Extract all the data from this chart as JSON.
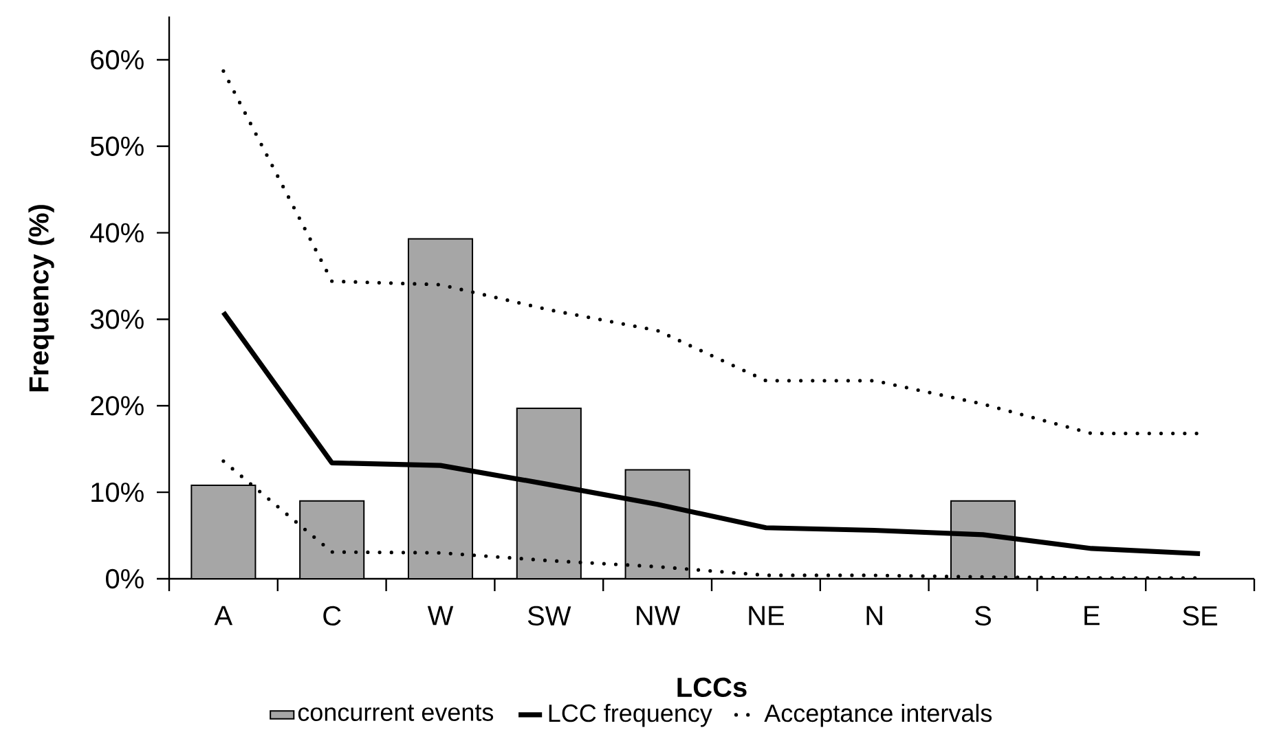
{
  "chart_data": {
    "type": "bar",
    "xlabel": "LCCs",
    "ylabel": "Frequency (%)",
    "categories": [
      "A",
      "C",
      "W",
      "SW",
      "NW",
      "NE",
      "N",
      "S",
      "E",
      "SE"
    ],
    "ylim": [
      0,
      65
    ],
    "yticks": [
      {
        "value": 0,
        "label": "0%"
      },
      {
        "value": 10,
        "label": "10%"
      },
      {
        "value": 20,
        "label": "20%"
      },
      {
        "value": 30,
        "label": "30%"
      },
      {
        "value": 40,
        "label": "40%"
      },
      {
        "value": 50,
        "label": "50%"
      },
      {
        "value": 60,
        "label": "60%"
      }
    ],
    "grid": false,
    "legend": "bottom",
    "series": [
      {
        "name": "concurrent events",
        "type": "bar",
        "color": "#a6a6a6",
        "values": [
          10.8,
          9.0,
          39.3,
          19.7,
          12.6,
          0,
          0,
          9.0,
          0,
          0
        ]
      },
      {
        "name": "LCC frequency",
        "type": "line",
        "color": "#000000",
        "line_style": "solid",
        "values": [
          30.8,
          13.4,
          13.1,
          10.9,
          8.6,
          5.9,
          5.6,
          5.1,
          3.5,
          2.9
        ]
      },
      {
        "name": "Acceptance intervals",
        "type": "line",
        "color": "#000000",
        "line_style": "dotted",
        "values": [
          58.7,
          34.4,
          34.0,
          31.1,
          28.7,
          22.9,
          22.9,
          20.2,
          16.8,
          16.8
        ]
      },
      {
        "type": "line",
        "color": "#000000",
        "line_style": "dotted",
        "values": [
          13.6,
          3.1,
          3.0,
          2.1,
          1.4,
          0.4,
          0.4,
          0.2,
          0.1,
          0.1
        ]
      }
    ]
  }
}
